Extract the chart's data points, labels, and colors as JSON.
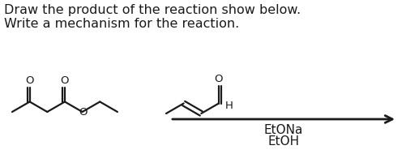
{
  "title_line1": "Draw the product of the reaction show below.",
  "title_line2": "Write a mechanism for the reaction.",
  "reagents_line1": "EtONa",
  "reagents_line2": "EtOH",
  "bg_color": "#ffffff",
  "text_color": "#1a1a1a",
  "line_color": "#1a1a1a",
  "title_fontsize": 11.5,
  "label_fontsize": 11.0,
  "mol_lw": 1.6
}
